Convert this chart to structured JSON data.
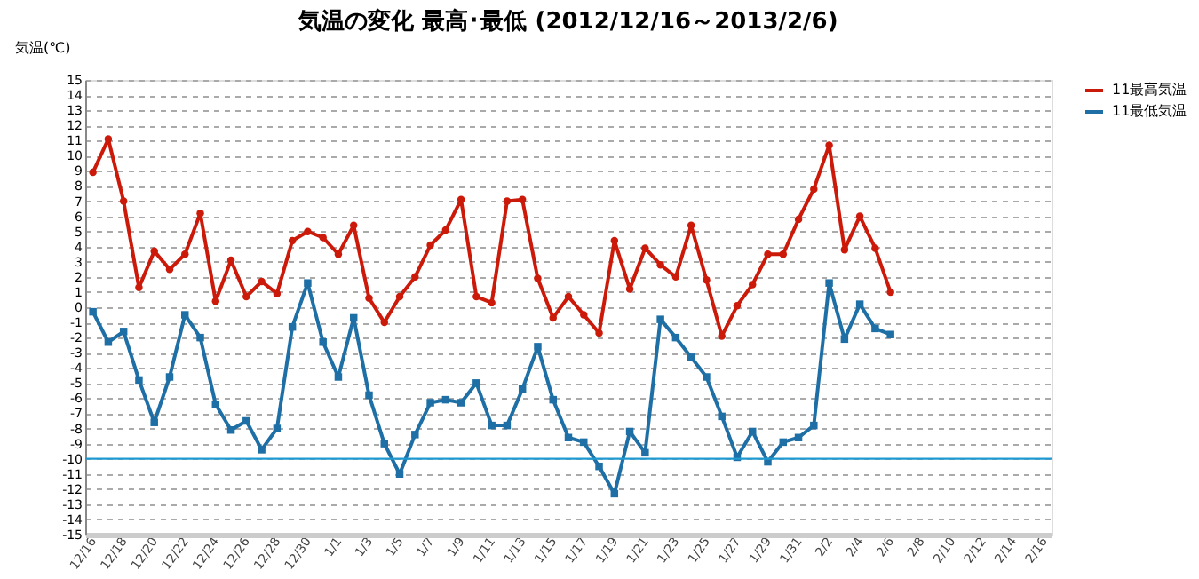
{
  "chart_data": {
    "type": "line",
    "title": "気温の変化  最高･最低  (2012/12/16～2013/2/6)",
    "ylabel": "気温(℃)",
    "categories": [
      "12/16",
      null,
      "12/18",
      null,
      "12/20",
      null,
      "12/22",
      null,
      "12/24",
      null,
      "12/26",
      null,
      "12/28",
      null,
      "12/30",
      null,
      "1/1",
      null,
      "1/3",
      null,
      "1/5",
      null,
      "1/7",
      null,
      "1/9",
      null,
      "1/11",
      null,
      "1/13",
      null,
      "1/15",
      null,
      "1/17",
      null,
      "1/19",
      null,
      "1/21",
      null,
      "1/23",
      null,
      "1/25",
      null,
      "1/27",
      null,
      "1/29",
      null,
      "1/31",
      null,
      "2/2",
      null,
      "2/4",
      null,
      "2/6",
      null,
      "2/8",
      null,
      "2/10",
      null,
      "2/12",
      null,
      "2/14",
      null,
      "2/16"
    ],
    "series": [
      {
        "name": "11最高気温",
        "color": "#cc1a0a",
        "marker": "circle",
        "values": [
          8.9,
          11.1,
          7.0,
          1.3,
          3.7,
          2.5,
          3.5,
          6.2,
          0.4,
          3.1,
          0.7,
          1.7,
          0.9,
          4.4,
          5.0,
          4.6,
          3.5,
          5.4,
          0.6,
          -1.0,
          0.7,
          2.0,
          4.1,
          5.1,
          7.1,
          0.7,
          0.3,
          7.0,
          7.1,
          1.9,
          -0.7,
          0.7,
          -0.5,
          -1.7,
          4.4,
          1.2,
          3.9,
          2.8,
          2.0,
          5.4,
          1.8,
          -1.9,
          0.1,
          1.5,
          3.5,
          3.5,
          5.8,
          7.8,
          10.7,
          3.8,
          6.0,
          3.9,
          1.0,
          null,
          null,
          null,
          null,
          null,
          null,
          null,
          null,
          null,
          null
        ]
      },
      {
        "name": "11最低気温",
        "color": "#1d6fa5",
        "marker": "square",
        "values": [
          -0.3,
          -2.3,
          -1.6,
          -4.8,
          -7.6,
          -4.6,
          -0.5,
          -2.0,
          -6.4,
          -8.1,
          -7.5,
          -9.4,
          -8.0,
          -1.3,
          1.6,
          -2.3,
          -4.6,
          -0.7,
          -5.8,
          -9.0,
          -11.0,
          -8.4,
          -6.3,
          -6.1,
          -6.3,
          -5.0,
          -7.8,
          -7.8,
          -5.4,
          -2.6,
          -6.1,
          -8.6,
          -8.9,
          -10.5,
          -12.3,
          -8.2,
          -9.6,
          -0.8,
          -2.0,
          -3.3,
          -4.6,
          -7.2,
          -9.9,
          -8.2,
          -10.2,
          -8.9,
          -8.6,
          -7.8,
          1.6,
          -2.1,
          0.2,
          -1.4,
          -1.8,
          null,
          null,
          null,
          null,
          null,
          null,
          null,
          null,
          null,
          null
        ]
      }
    ],
    "ylim": [
      -15,
      15
    ],
    "yticks": [
      -15,
      -14,
      -13,
      -12,
      -11,
      -10,
      -9,
      -8,
      -7,
      -6,
      -5,
      -4,
      -3,
      -2,
      -1,
      0,
      1,
      2,
      3,
      4,
      5,
      6,
      7,
      8,
      9,
      10,
      11,
      12,
      13,
      14,
      15
    ],
    "ref_lines": [
      {
        "axis": "y",
        "value": -10,
        "color": "#1f9ad0"
      }
    ],
    "grid": "y",
    "legend": "right",
    "line_style": "solid"
  }
}
